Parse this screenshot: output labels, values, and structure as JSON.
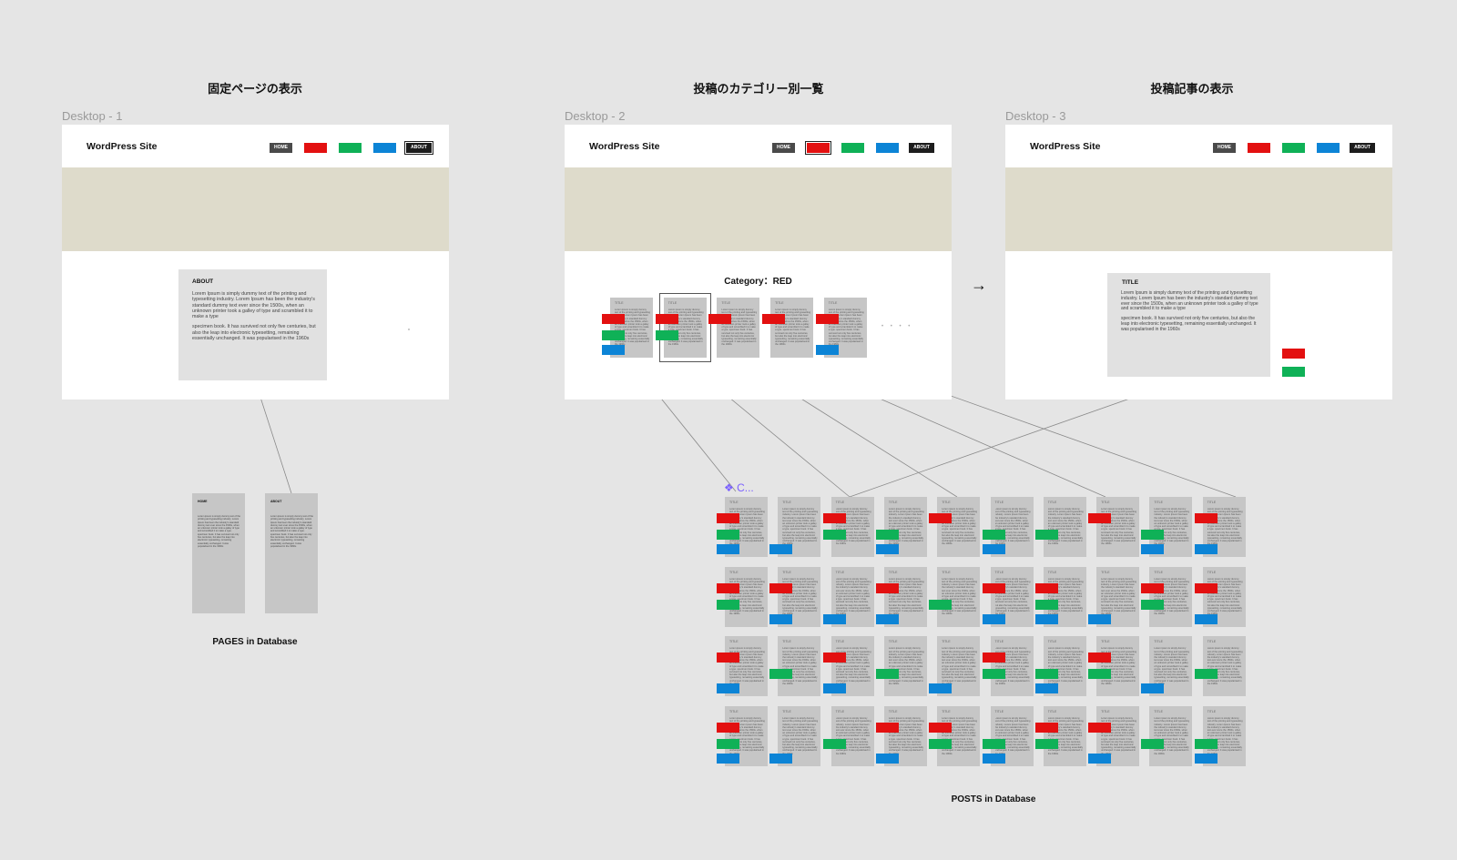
{
  "colors": {
    "red": "#e31010",
    "green": "#0fb157",
    "blue": "#0c84d6",
    "home": "#4a4a4a",
    "about": "#1d1d1d",
    "hero": "#dedbcb"
  },
  "sections": [
    "固定ページの表示",
    "投稿のカテゴリー別一覧",
    "投稿記事の表示"
  ],
  "frames": [
    {
      "label": "Desktop - 1",
      "site": "WordPress Site",
      "home": "HOME",
      "about": "ABOUT",
      "active": "about"
    },
    {
      "label": "Desktop - 2",
      "site": "WordPress Site",
      "home": "HOME",
      "about": "ABOUT",
      "active": "red"
    },
    {
      "label": "Desktop - 3",
      "site": "WordPress Site",
      "home": "HOME",
      "about": "ABOUT",
      "active": "none"
    }
  ],
  "about_page": {
    "title": "ABOUT",
    "p1": "Lorem Ipsum is simply dummy text of the printing and typesetting industry. Lorem Ipsum has been the industry's standard dummy text ever since the 1500s, when an unknown printer took a galley of type and scrambled it to make a type",
    "p2": "specimen book. It has survived not only five centuries, but also the leap into electronic typesetting, remaining essentially unchanged. It was popularised in the 1960s"
  },
  "category": {
    "heading": "Category：RED",
    "cards": [
      [
        "red",
        "green",
        "blue"
      ],
      [
        "red",
        "green"
      ],
      [
        "red"
      ],
      [
        "red"
      ],
      [
        "red",
        "blue"
      ]
    ],
    "more": "• • • •"
  },
  "post_view": {
    "title": "TITLE",
    "p1": "Lorem Ipsum is simply dummy text of the printing and typesetting industry. Lorem Ipsum has been the industry's standard dummy text ever since the 1500s, when an unknown printer took a galley of type and scrambled it to make a type",
    "p2": "specimen book. It has survived not only five centuries, but also the leap into electronic typesetting, remaining essentially unchanged. It was popularised in the 1960s",
    "tags": [
      "red",
      "green"
    ]
  },
  "arrow": "→",
  "pages_db": {
    "label": "PAGES in Database",
    "pages": [
      "HOME",
      "ABOUT"
    ]
  },
  "posts_db": {
    "label": "POSTS in Database",
    "component": "❖ C...",
    "rows": [
      [
        [
          "red",
          "green",
          "blue"
        ],
        [
          "blue"
        ],
        [
          "red",
          "green"
        ],
        [
          "green",
          "blue"
        ],
        [
          "red"
        ],
        [
          "green",
          "blue"
        ],
        [
          "green"
        ],
        [
          "red"
        ],
        [
          "green",
          "blue"
        ],
        [
          "red",
          "blue"
        ]
      ],
      [
        [
          "red",
          "green"
        ],
        [
          "red",
          "blue"
        ],
        [
          "blue"
        ],
        [
          "red",
          "blue"
        ],
        [
          "green"
        ],
        [
          "red",
          "blue"
        ],
        [
          "red",
          "green",
          "blue"
        ],
        [
          "blue"
        ],
        [
          "red",
          "green"
        ],
        [
          "red",
          "blue"
        ]
      ],
      [
        [
          "red",
          "blue"
        ],
        [
          "green"
        ],
        [
          "red",
          "blue"
        ],
        [
          "green"
        ],
        [
          "blue"
        ],
        [
          "red",
          "green"
        ],
        [
          "green",
          "blue"
        ],
        [
          "red",
          "green"
        ],
        [
          "blue"
        ],
        [
          "green"
        ]
      ],
      [
        [
          "red",
          "green",
          "blue"
        ],
        [
          "blue"
        ],
        [
          "green"
        ],
        [
          "red",
          "blue"
        ],
        [
          "red",
          "green"
        ],
        [
          "green",
          "blue"
        ],
        [
          "red",
          "green"
        ],
        [
          "red",
          "blue"
        ],
        [
          "green"
        ],
        [
          "green",
          "blue"
        ]
      ]
    ]
  },
  "mini_title": "TITLE",
  "mini_text": "Lorem ipsum is simply dummy text of the printing and typesetting industry. Lorem Ipsum has been the industry's standard dummy text ever since the 1500s, when an unknown printer took a galley of type and scrambled it to make a type. specimen book. It has survived not only five centuries, but also the leap into electronic typesetting, remaining essentially unchanged. It was popularised in the 1960s"
}
